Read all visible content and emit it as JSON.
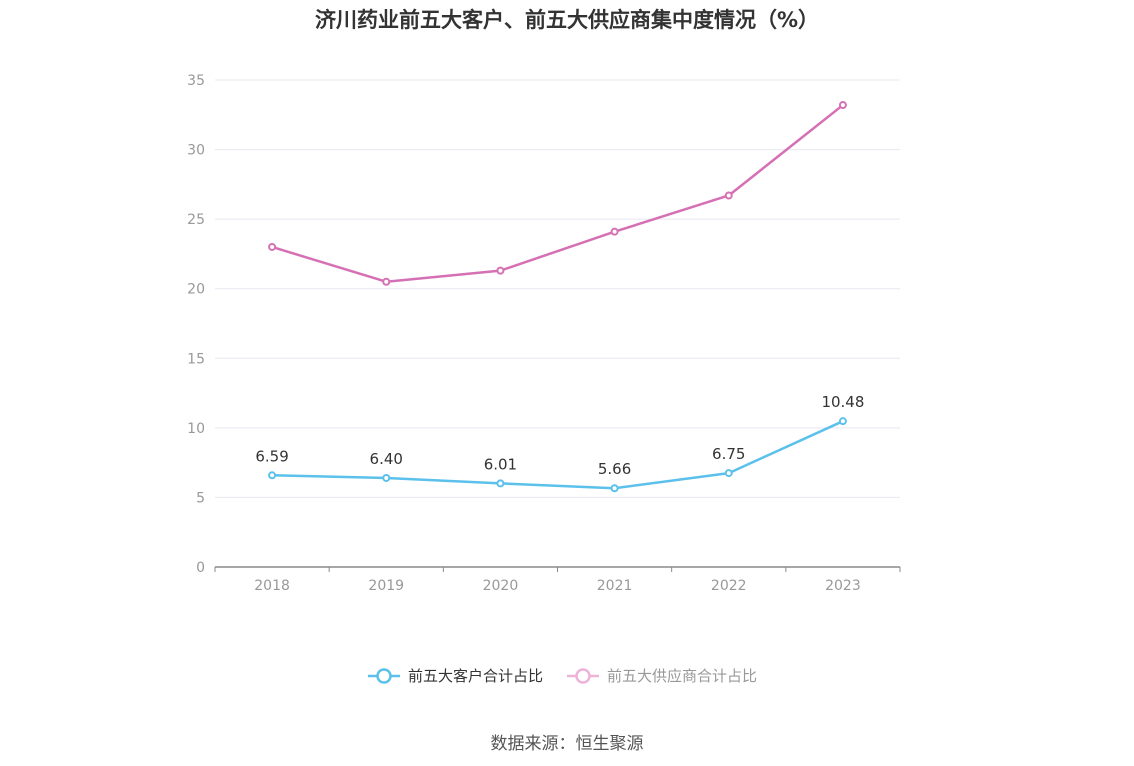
{
  "title": "济川药业前五大客户、前五大供应商集中度情况（%）",
  "source": "数据来源：恒生聚源",
  "chart_data": {
    "type": "line",
    "title": "济川药业前五大客户、前五大供应商集中度情况（%）",
    "x": [
      "2018",
      "2019",
      "2020",
      "2021",
      "2022",
      "2023"
    ],
    "ylim": [
      0,
      35
    ],
    "yticks": [
      0,
      5,
      10,
      15,
      20,
      25,
      30,
      35
    ],
    "grid": true,
    "legend_position": "bottom-center",
    "series": [
      {
        "name": "前五大客户合计占比",
        "color": "#5bc0eb",
        "values": [
          6.59,
          6.4,
          6.01,
          5.66,
          6.75,
          10.48
        ],
        "labels": [
          "6.59",
          "6.40",
          "6.01",
          "5.66",
          "6.75",
          "10.48"
        ],
        "show_labels": true
      },
      {
        "name": "前五大供应商合计占比",
        "color": "#d670b4",
        "legend_color": "#eeb4d8",
        "values": [
          23.0,
          20.5,
          21.3,
          24.1,
          26.7,
          33.2
        ],
        "show_labels": false
      }
    ]
  }
}
